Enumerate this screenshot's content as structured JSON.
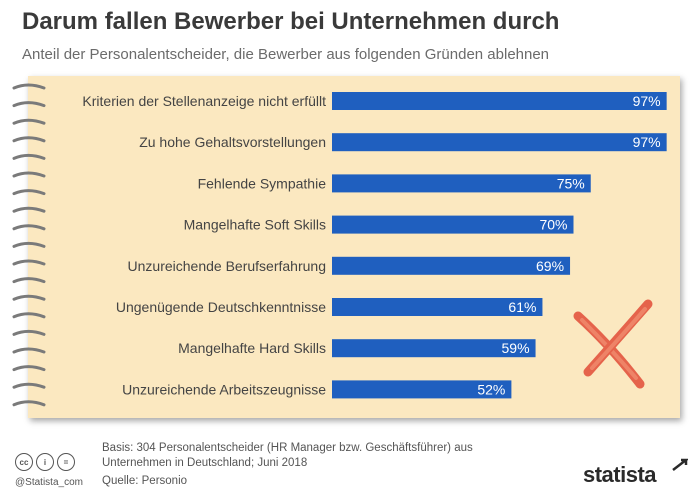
{
  "title": "Darum fallen Bewerber bei Unternehmen durch",
  "subtitle": "Anteil der Personalentscheider, die Bewerber aus folgenden Gründen ablehnen",
  "chart_data": {
    "type": "bar",
    "orientation": "horizontal",
    "categories": [
      "Kriterien der Stellenanzeige nicht erfüllt",
      "Zu hohe Gehaltsvorstellungen",
      "Fehlende Sympathie",
      "Mangelhafte Soft Skills",
      "Unzureichende Berufserfahrung",
      "Ungenügende Deutschkenntnisse",
      "Mangelhafte Hard Skills",
      "Unzureichende Arbeitszeugnisse"
    ],
    "values": [
      97,
      97,
      75,
      70,
      69,
      61,
      59,
      52
    ],
    "value_labels": [
      "97%",
      "97%",
      "75%",
      "70%",
      "69%",
      "61%",
      "59%",
      "52%"
    ],
    "xlim": [
      0,
      100
    ],
    "bar_color": "#1f5fbf",
    "background_color": "#fbe8c0",
    "grid": false,
    "decoration": "red-x-mark"
  },
  "footer": {
    "basis": "Basis: 304 Personalentscheider (HR Manager bzw. Geschäftsführer) aus Unternehmen in Deutschland; Juni 2018",
    "source": "Quelle: Personio",
    "handle": "@Statista_com",
    "license_icons": [
      "cc-icon",
      "attribution-icon",
      "no-derivatives-icon"
    ],
    "license_glyphs": [
      "cc",
      "i",
      "="
    ],
    "brand": "statista"
  }
}
